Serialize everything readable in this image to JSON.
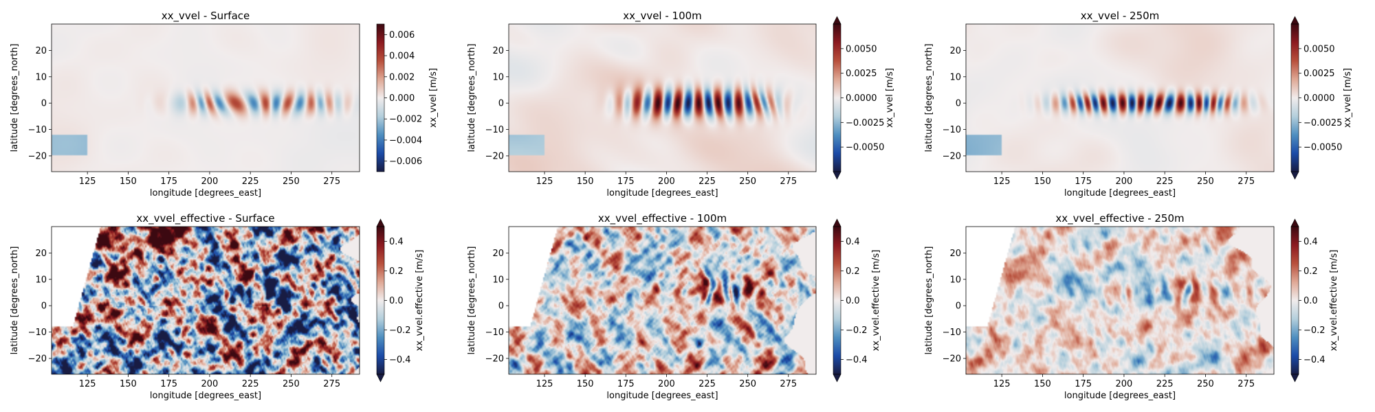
{
  "chart_data": [
    {
      "type": "heatmap",
      "title": "xx_vvel - Surface",
      "xlabel": "longitude [degrees_east]",
      "ylabel": "latitude [degrees_north]",
      "xlim": [
        103,
        292
      ],
      "ylim": [
        -26,
        30
      ],
      "xticks": [
        125,
        150,
        175,
        200,
        225,
        250,
        275
      ],
      "yticks": [
        -20,
        -10,
        0,
        10,
        20
      ],
      "colorbar": {
        "label": "xx_vvel [m/s]",
        "vmin": -0.007,
        "vmax": 0.007,
        "ticks": [
          -0.006,
          -0.004,
          -0.002,
          0.0,
          0.002,
          0.004,
          0.006
        ],
        "tick_labels": [
          "−0.006",
          "−0.004",
          "−0.002",
          "0.000",
          "0.002",
          "0.004",
          "0.006"
        ],
        "extend": "neither"
      },
      "field": {
        "kind": "equatorial",
        "amp": 0.55,
        "center_lon": 230,
        "lon_halfwidth": 50,
        "lat_width": 4,
        "wavelength": 14,
        "noise": 0.03,
        "seed": 11
      }
    },
    {
      "type": "heatmap",
      "title": "xx_vvel - 100m",
      "xlabel": "longitude [degrees_east]",
      "ylabel": "latitude [degrees_north]",
      "xlim": [
        103,
        292
      ],
      "ylim": [
        -26,
        30
      ],
      "xticks": [
        125,
        150,
        175,
        200,
        225,
        250,
        275
      ],
      "yticks": [
        -20,
        -10,
        0,
        10,
        20
      ],
      "colorbar": {
        "label": "xx_vvel [m/s]",
        "vmin": -0.0075,
        "vmax": 0.0075,
        "ticks": [
          -0.005,
          -0.0025,
          0.0,
          0.0025,
          0.005
        ],
        "tick_labels": [
          "−0.0050",
          "−0.0025",
          "0.0000",
          "0.0025",
          "0.0050"
        ],
        "extend": "both"
      },
      "field": {
        "kind": "equatorial",
        "amp": 1.0,
        "center_lon": 220,
        "lon_halfwidth": 45,
        "lat_width": 5,
        "wavelength": 12,
        "noise": 0.12,
        "seed": 23
      }
    },
    {
      "type": "heatmap",
      "title": "xx_vvel - 250m",
      "xlabel": "longitude [degrees_east]",
      "ylabel": "latitude [degrees_north]",
      "xlim": [
        103,
        292
      ],
      "ylim": [
        -26,
        30
      ],
      "xticks": [
        125,
        150,
        175,
        200,
        225,
        250,
        275
      ],
      "yticks": [
        -20,
        -10,
        0,
        10,
        20
      ],
      "colorbar": {
        "label": "xx_vvel [m/s]",
        "vmin": -0.0075,
        "vmax": 0.0075,
        "ticks": [
          -0.005,
          -0.0025,
          0.0,
          0.0025,
          0.005
        ],
        "tick_labels": [
          "−0.0050",
          "−0.0025",
          "0.0000",
          "0.0025",
          "0.0050"
        ],
        "extend": "both"
      },
      "field": {
        "kind": "equatorial",
        "amp": 1.0,
        "center_lon": 215,
        "lon_halfwidth": 55,
        "lat_width": 3.5,
        "wavelength": 11,
        "noise": 0.06,
        "seed": 37
      }
    },
    {
      "type": "heatmap",
      "title": "xx_vvel_effective - Surface",
      "xlabel": "longitude [degrees_east]",
      "ylabel": "latitude [degrees_north]",
      "xlim": [
        103,
        292
      ],
      "ylim": [
        -26,
        30
      ],
      "xticks": [
        125,
        150,
        175,
        200,
        225,
        250,
        275
      ],
      "yticks": [
        -20,
        -10,
        0,
        10,
        20
      ],
      "colorbar": {
        "label": "xx_vvel.effective [m/s]",
        "vmin": -0.5,
        "vmax": 0.5,
        "ticks": [
          -0.4,
          -0.2,
          0.0,
          0.2,
          0.4
        ],
        "tick_labels": [
          "−0.4",
          "−0.2",
          "0.0",
          "0.2",
          "0.4"
        ],
        "extend": "both"
      },
      "field": {
        "kind": "noisy",
        "amp": 0.6,
        "noise": 0.55,
        "bias_south": -0.25,
        "east_limit": 290,
        "seed": 51
      }
    },
    {
      "type": "heatmap",
      "title": "xx_vvel_effective - 100m",
      "xlabel": "longitude [degrees_east]",
      "ylabel": "latitude [degrees_north]",
      "xlim": [
        103,
        292
      ],
      "ylim": [
        -26,
        30
      ],
      "xticks": [
        125,
        150,
        175,
        200,
        225,
        250,
        275
      ],
      "yticks": [
        -20,
        -10,
        0,
        10,
        20
      ],
      "colorbar": {
        "label": "xx_vvel.effective [m/s]",
        "vmin": -0.5,
        "vmax": 0.5,
        "ticks": [
          -0.4,
          -0.2,
          0.0,
          0.2,
          0.4
        ],
        "tick_labels": [
          "−0.4",
          "−0.2",
          "0.0",
          "0.2",
          "0.4"
        ],
        "extend": "both"
      },
      "field": {
        "kind": "noisy",
        "amp": 0.6,
        "noise": 0.28,
        "bias_south": 0.0,
        "east_limit": 283,
        "seed": 67
      }
    },
    {
      "type": "heatmap",
      "title": "xx_vvel_effective - 250m",
      "xlabel": "longitude [degrees_east]",
      "ylabel": "latitude [degrees_north]",
      "xlim": [
        103,
        292
      ],
      "ylim": [
        -26,
        30
      ],
      "xticks": [
        125,
        150,
        175,
        200,
        225,
        250,
        275
      ],
      "yticks": [
        -20,
        -10,
        0,
        10,
        20
      ],
      "colorbar": {
        "label": "xx_vvel.effective [m/s]",
        "vmin": -0.5,
        "vmax": 0.5,
        "ticks": [
          -0.4,
          -0.2,
          0.0,
          0.2,
          0.4
        ],
        "tick_labels": [
          "−0.4",
          "−0.2",
          "0.0",
          "0.2",
          "0.4"
        ],
        "extend": "both"
      },
      "field": {
        "kind": "noisy",
        "amp": 0.4,
        "noise": 0.18,
        "bias_south": 0.05,
        "east_limit": 280,
        "seed": 83
      }
    }
  ],
  "colormap": {
    "name": "balance",
    "stops": [
      "#181c43",
      "#1b4ba8",
      "#4f8fc0",
      "#b4cfdc",
      "#f1ecec",
      "#dfa895",
      "#b8503c",
      "#8c1a20",
      "#3c0911"
    ]
  }
}
